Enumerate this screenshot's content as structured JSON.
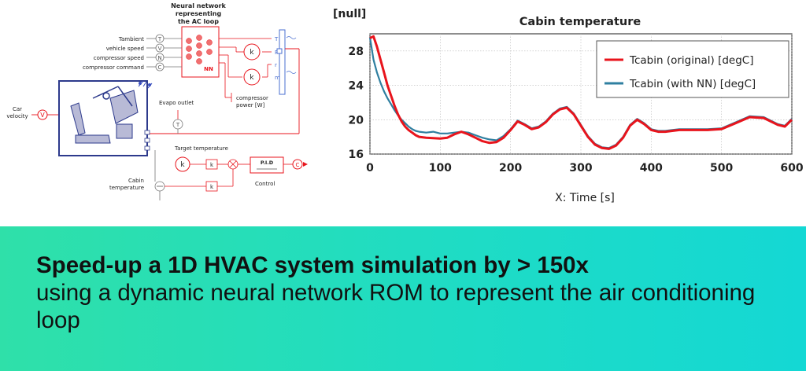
{
  "diagram": {
    "nn_title": [
      "Neural network",
      "representing",
      "the AC loop"
    ],
    "inputs": [
      {
        "label": "Tambient",
        "sym": "T"
      },
      {
        "label": "vehicle speed",
        "sym": "V"
      },
      {
        "label": "compressor speed",
        "sym": "N"
      },
      {
        "label": "compressor command",
        "sym": "C"
      }
    ],
    "nn_label": "NN",
    "outputs": [
      "T",
      "P",
      "r",
      "m"
    ],
    "k_label": "k",
    "compressor_power": [
      "compressor",
      "power [W]"
    ],
    "car_velocity": [
      "Car",
      "velocity"
    ],
    "v_sym": "V",
    "evapo_outlet": "Evapo outlet",
    "t_sym": "T",
    "target_temperature": "Target temperature",
    "cabin_temperature": [
      "Cabin",
      "temperature"
    ],
    "pid": "P.I.D",
    "c_sym": "C",
    "control": "Control"
  },
  "chart_data": {
    "type": "line",
    "title": "Cabin temperature",
    "ylabel": "[null]",
    "xlabel": "X: Time [s]",
    "xlim": [
      0,
      600
    ],
    "ylim": [
      16,
      30
    ],
    "xticks": [
      0,
      100,
      200,
      300,
      400,
      500,
      600
    ],
    "yticks": [
      16,
      20,
      24,
      28
    ],
    "grid": true,
    "legend_position": "top-right",
    "colors": {
      "original": "#e8141c",
      "nn": "#2f7fa0"
    },
    "series": [
      {
        "name": "Tcabin (original) [degC]",
        "x": [
          0,
          5,
          10,
          15,
          20,
          25,
          30,
          35,
          40,
          45,
          50,
          55,
          60,
          65,
          70,
          80,
          90,
          100,
          110,
          120,
          130,
          140,
          150,
          160,
          170,
          180,
          190,
          200,
          210,
          220,
          230,
          240,
          250,
          260,
          270,
          280,
          290,
          300,
          310,
          320,
          330,
          340,
          350,
          360,
          370,
          380,
          390,
          400,
          410,
          420,
          430,
          440,
          450,
          460,
          480,
          500,
          520,
          540,
          560,
          580,
          590,
          600
        ],
        "y": [
          29.5,
          29.7,
          28.5,
          27.0,
          25.5,
          24.0,
          22.8,
          21.6,
          20.6,
          19.8,
          19.2,
          18.8,
          18.5,
          18.2,
          18.0,
          17.9,
          17.85,
          17.8,
          17.9,
          18.3,
          18.6,
          18.3,
          17.9,
          17.5,
          17.3,
          17.4,
          17.9,
          18.8,
          19.8,
          19.4,
          18.9,
          19.1,
          19.7,
          20.6,
          21.2,
          21.4,
          20.6,
          19.3,
          18.0,
          17.1,
          16.7,
          16.6,
          17.0,
          17.9,
          19.3,
          20.0,
          19.5,
          18.8,
          18.6,
          18.6,
          18.7,
          18.8,
          18.8,
          18.8,
          18.8,
          18.9,
          19.6,
          20.3,
          20.2,
          19.4,
          19.2,
          20.0
        ]
      },
      {
        "name": "Tcabin (with NN) [degC]",
        "x": [
          0,
          5,
          10,
          15,
          20,
          25,
          30,
          35,
          40,
          45,
          50,
          55,
          60,
          65,
          70,
          80,
          90,
          100,
          110,
          120,
          130,
          140,
          150,
          160,
          170,
          180,
          190,
          200,
          210,
          220,
          230,
          240,
          250,
          260,
          270,
          280,
          290,
          300,
          310,
          320,
          330,
          340,
          350,
          360,
          370,
          380,
          390,
          400,
          410,
          420,
          430,
          440,
          450,
          460,
          480,
          500,
          520,
          540,
          560,
          580,
          590,
          600
        ],
        "y": [
          29.6,
          27.0,
          25.5,
          24.3,
          23.3,
          22.5,
          21.8,
          21.1,
          20.5,
          20.0,
          19.6,
          19.2,
          18.9,
          18.7,
          18.6,
          18.5,
          18.6,
          18.4,
          18.4,
          18.5,
          18.6,
          18.5,
          18.2,
          17.9,
          17.7,
          17.6,
          18.1,
          18.9,
          19.9,
          19.5,
          19.0,
          19.2,
          19.8,
          20.7,
          21.3,
          21.5,
          20.7,
          19.4,
          18.1,
          17.2,
          16.8,
          16.7,
          17.1,
          18.0,
          19.4,
          20.1,
          19.6,
          18.9,
          18.7,
          18.7,
          18.8,
          18.9,
          18.9,
          18.9,
          18.9,
          19.0,
          19.7,
          20.4,
          20.3,
          19.5,
          19.3,
          20.1
        ]
      }
    ]
  },
  "banner": {
    "bold": "Speed-up a 1D HVAC system simulation by > 150x",
    "rest": "using a dynamic neural network ROM to represent the air conditioning loop"
  }
}
